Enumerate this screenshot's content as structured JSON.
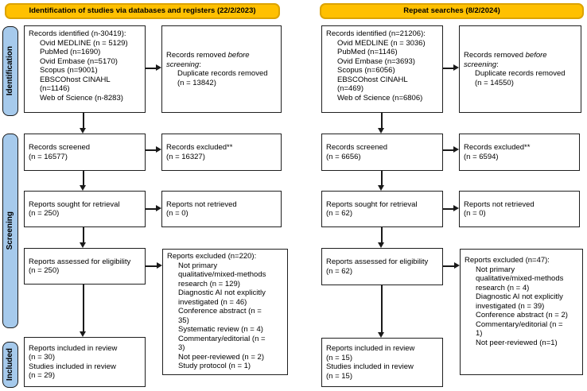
{
  "headers": {
    "left": "Identification of studies via databases and registers (22/2/2023)",
    "right": "Repeat searches (8/2/2024)"
  },
  "sidebar": {
    "identification": "Identification",
    "screening": "Screening",
    "included": "Included"
  },
  "colors": {
    "header_fill": "#FFC000",
    "header_border": "#DCA300",
    "sidebar_fill": "#A6CAEC"
  },
  "left": {
    "identified": {
      "title": "Records identified (n-30419):",
      "items": [
        "Ovid MEDLINE (n = 5129)",
        "PubMed (n=1690)",
        "Ovid Embase (n=5170)",
        "Scopus (n=9001)",
        "EBSCOhost CINAHL\n(n=1146)",
        "Web of Science (n-8283)"
      ]
    },
    "removed": {
      "prefix": "Records removed ",
      "italic": "before screening",
      "suffix": ":",
      "item": "Duplicate records removed\n(n = 13842)"
    },
    "screened": "Records screened\n(n = 16577)",
    "excluded": "Records excluded**\n(n = 16327)",
    "sought": "Reports sought for retrieval\n(n = 250)",
    "not_retrieved": "Reports not retrieved\n(n = 0)",
    "assessed": "Reports assessed for eligibility\n(n = 250)",
    "reports_excluded": {
      "title": "Reports excluded (n=220):",
      "items": [
        "Not primary\nqualitative/mixed-methods\nresearch (n = 129)",
        "Diagnostic AI not explicitly\ninvestigated (n = 46)",
        "Conference abstract (n =\n35)",
        "Systematic review (n = 4)",
        "Commentary/editorial (n =\n3)",
        "Not peer-reviewed (n = 2)",
        "Study protocol (n = 1)"
      ]
    },
    "included": "Reports included in review\n(n = 30)\nStudies included in review\n(n = 29)"
  },
  "right": {
    "identified": {
      "title": "Records identified (n=21206):",
      "items": [
        "Ovid MEDLINE (n = 3036)",
        "PubMed (n=1146)",
        "Ovid Embase (n=3693)",
        "Scopus (n=6056)",
        "EBSCOhost CINAHL\n(n=469)",
        "Web of Science (n=6806)"
      ]
    },
    "removed": {
      "prefix": "Records removed ",
      "italic": "before screening",
      "suffix": ":",
      "item": "Duplicate records removed\n(n = 14550)"
    },
    "screened": "Records screened\n(n = 6656)",
    "excluded": "Records excluded**\n(n = 6594)",
    "sought": "Reports sought for retrieval\n(n = 62)",
    "not_retrieved": "Reports not retrieved\n(n = 0)",
    "assessed": "Reports assessed for eligibility\n(n = 62)",
    "reports_excluded": {
      "title": "Reports excluded (n=47):",
      "items": [
        "Not primary\nqualitative/mixed-methods\nresearch (n = 4)",
        "Diagnostic AI not explicitly\ninvestigated (n = 39)",
        "Conference abstract (n = 2)",
        "Commentary/editorial (n =\n1)",
        "Not peer-reviewed (n=1)"
      ]
    },
    "included": "Reports included in review\n(n = 15)\nStudies included in review\n(n = 15)"
  }
}
